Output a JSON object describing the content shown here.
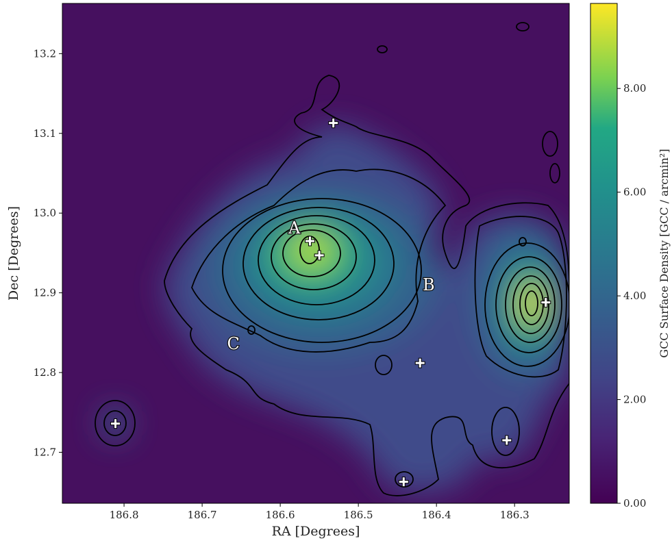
{
  "chart_data": {
    "type": "density_map",
    "xlabel": "RA [Degrees]",
    "ylabel": "Dec [Degrees]",
    "colorbar_label": "GCC Surface Density [GCC / arcmin²]",
    "xlim": [
      186.879,
      186.23
    ],
    "ylim": [
      12.636,
      13.263
    ],
    "xticks": [
      186.8,
      186.7,
      186.6,
      186.5,
      186.4,
      186.3
    ],
    "yticks": [
      12.7,
      12.8,
      12.9,
      {
        "value": 13,
        "label": "13.0"
      },
      13.1,
      13.2
    ],
    "clim": [
      0,
      9.64
    ],
    "cticks": [
      {
        "value": 0,
        "label": "0.00"
      },
      {
        "value": 2,
        "label": "2.00"
      },
      {
        "value": 4,
        "label": "4.00"
      },
      {
        "value": 6,
        "label": "6.00"
      },
      {
        "value": 8,
        "label": "8.00"
      }
    ],
    "markers": {
      "x": [
        186.532,
        186.562,
        186.55,
        186.26,
        186.421,
        186.811,
        186.31,
        186.442
      ],
      "y": [
        13.113,
        12.965,
        12.947,
        12.888,
        12.812,
        12.736,
        12.715,
        12.663
      ],
      "color": "#ffffff"
    },
    "annotations": [
      {
        "text": "A",
        "x": 186.582,
        "y": 12.982
      },
      {
        "text": "B",
        "x": 186.41,
        "y": 12.911
      },
      {
        "text": "C",
        "x": 186.66,
        "y": 12.837
      }
    ]
  }
}
